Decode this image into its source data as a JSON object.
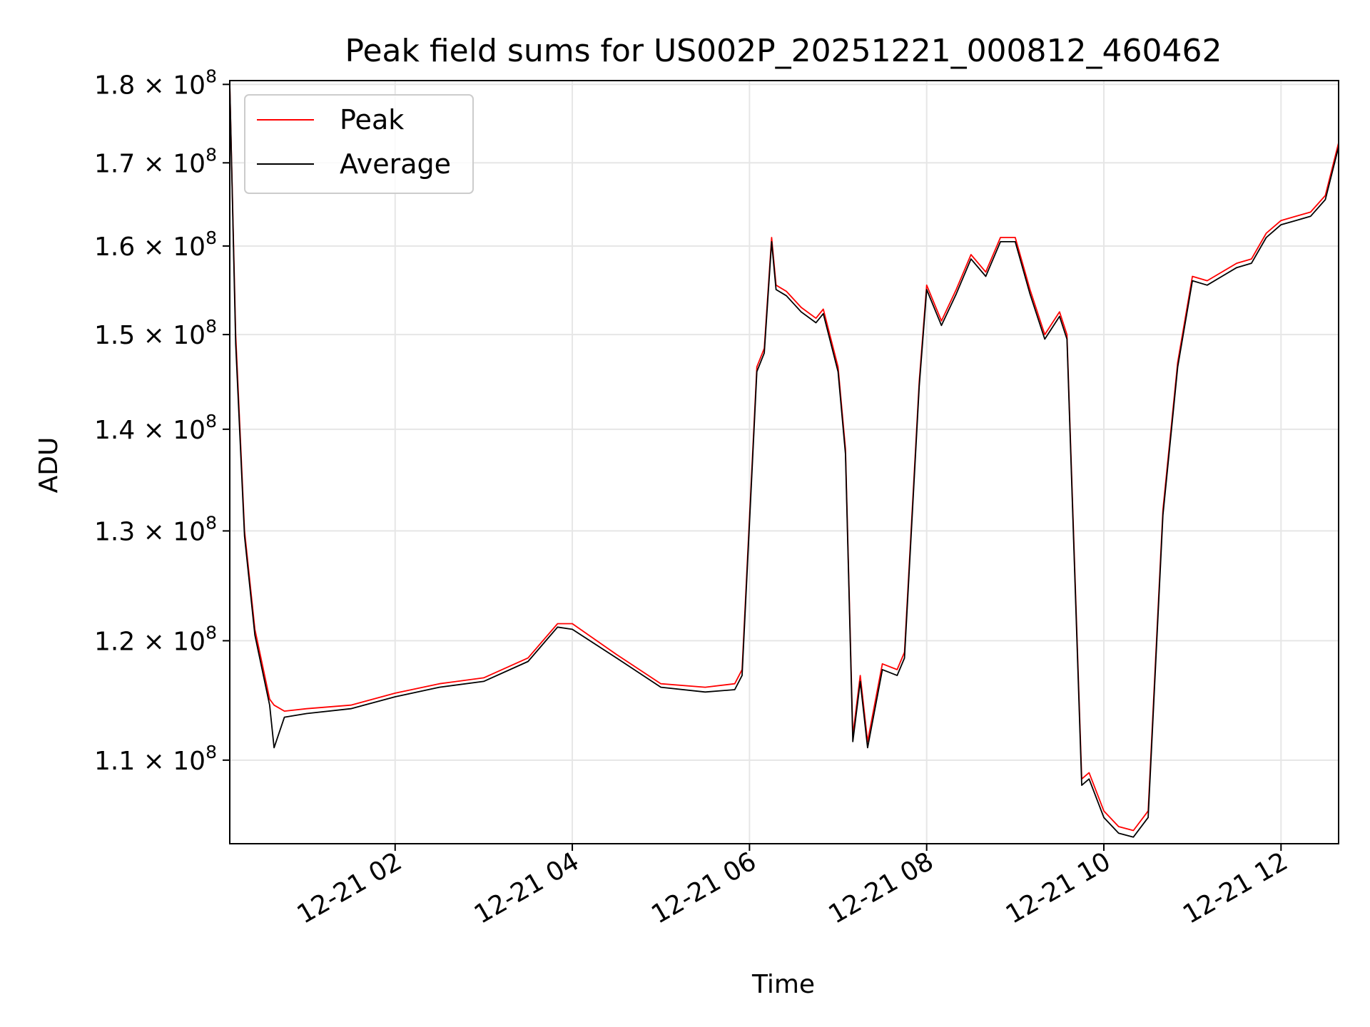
{
  "chart_data": {
    "type": "line",
    "title": "Peak field sums for US002P_20251221_000812_460462",
    "xlabel": "Time",
    "ylabel": "ADU",
    "yscale": "log",
    "ylim": [
      103500000,
      180500000
    ],
    "xlim": [
      "2025-12-21T00:08",
      "2025-12-21T12:39"
    ],
    "grid": true,
    "legend_position": "top-left",
    "x_ticks": [
      "2025-12-21T02:00",
      "2025-12-21T04:00",
      "2025-12-21T06:00",
      "2025-12-21T08:00",
      "2025-12-21T10:00",
      "2025-12-21T12:00"
    ],
    "x_tick_labels": [
      "12-21 02",
      "12-21 04",
      "12-21 06",
      "12-21 08",
      "12-21 10",
      "12-21 12"
    ],
    "y_ticks": [
      110000000,
      120000000,
      130000000,
      140000000,
      150000000,
      160000000,
      170000000,
      180000000
    ],
    "y_tick_labels": [
      {
        "mantissa": "1.1",
        "exp": "8"
      },
      {
        "mantissa": "1.2",
        "exp": "8"
      },
      {
        "mantissa": "1.3",
        "exp": "8"
      },
      {
        "mantissa": "1.4",
        "exp": "8"
      },
      {
        "mantissa": "1.5",
        "exp": "8"
      },
      {
        "mantissa": "1.6",
        "exp": "8"
      },
      {
        "mantissa": "1.7",
        "exp": "8"
      },
      {
        "mantissa": "1.8",
        "exp": "8"
      }
    ],
    "series": [
      {
        "name": "Peak",
        "color": "#ff0000",
        "x": [
          "2025-12-21T00:08",
          "2025-12-21T00:12",
          "2025-12-21T00:18",
          "2025-12-21T00:25",
          "2025-12-21T00:35",
          "2025-12-21T00:38",
          "2025-12-21T00:45",
          "2025-12-21T01:00",
          "2025-12-21T01:30",
          "2025-12-21T02:00",
          "2025-12-21T02:30",
          "2025-12-21T03:00",
          "2025-12-21T03:30",
          "2025-12-21T03:50",
          "2025-12-21T04:00",
          "2025-12-21T04:30",
          "2025-12-21T05:00",
          "2025-12-21T05:30",
          "2025-12-21T05:50",
          "2025-12-21T05:55",
          "2025-12-21T06:05",
          "2025-12-21T06:10",
          "2025-12-21T06:15",
          "2025-12-21T06:18",
          "2025-12-21T06:25",
          "2025-12-21T06:35",
          "2025-12-21T06:45",
          "2025-12-21T06:50",
          "2025-12-21T07:00",
          "2025-12-21T07:05",
          "2025-12-21T07:10",
          "2025-12-21T07:15",
          "2025-12-21T07:20",
          "2025-12-21T07:30",
          "2025-12-21T07:40",
          "2025-12-21T07:45",
          "2025-12-21T07:55",
          "2025-12-21T08:00",
          "2025-12-21T08:10",
          "2025-12-21T08:20",
          "2025-12-21T08:30",
          "2025-12-21T08:40",
          "2025-12-21T08:50",
          "2025-12-21T09:00",
          "2025-12-21T09:10",
          "2025-12-21T09:20",
          "2025-12-21T09:30",
          "2025-12-21T09:35",
          "2025-12-21T09:45",
          "2025-12-21T09:50",
          "2025-12-21T10:00",
          "2025-12-21T10:10",
          "2025-12-21T10:20",
          "2025-12-21T10:30",
          "2025-12-21T10:40",
          "2025-12-21T10:50",
          "2025-12-21T11:00",
          "2025-12-21T11:10",
          "2025-12-21T11:20",
          "2025-12-21T11:30",
          "2025-12-21T11:40",
          "2025-12-21T11:50",
          "2025-12-21T12:00",
          "2025-12-21T12:10",
          "2025-12-21T12:20",
          "2025-12-21T12:30",
          "2025-12-21T12:39"
        ],
        "values": [
          180000000,
          150000000,
          130000000,
          121000000,
          115000000,
          114500000,
          114000000,
          114200000,
          114500000,
          115500000,
          116300000,
          116800000,
          118500000,
          121500000,
          121500000,
          118800000,
          116300000,
          116000000,
          116300000,
          117500000,
          146500000,
          148500000,
          161000000,
          155500000,
          154800000,
          153000000,
          151800000,
          152800000,
          146500000,
          138000000,
          112000000,
          117000000,
          111500000,
          118000000,
          117500000,
          119000000,
          145000000,
          155500000,
          151500000,
          155000000,
          159000000,
          157000000,
          161000000,
          161000000,
          155000000,
          150000000,
          152500000,
          150000000,
          108500000,
          109000000,
          106000000,
          104800000,
          104500000,
          106000000,
          132000000,
          147000000,
          156500000,
          156000000,
          157000000,
          158000000,
          158500000,
          161500000,
          163000000,
          163500000,
          164000000,
          166000000,
          172500000
        ]
      },
      {
        "name": "Average",
        "color": "#000000",
        "x": [
          "2025-12-21T00:08",
          "2025-12-21T00:12",
          "2025-12-21T00:18",
          "2025-12-21T00:25",
          "2025-12-21T00:35",
          "2025-12-21T00:38",
          "2025-12-21T00:45",
          "2025-12-21T01:00",
          "2025-12-21T01:30",
          "2025-12-21T02:00",
          "2025-12-21T02:30",
          "2025-12-21T03:00",
          "2025-12-21T03:30",
          "2025-12-21T03:50",
          "2025-12-21T04:00",
          "2025-12-21T04:30",
          "2025-12-21T05:00",
          "2025-12-21T05:30",
          "2025-12-21T05:50",
          "2025-12-21T05:55",
          "2025-12-21T06:05",
          "2025-12-21T06:10",
          "2025-12-21T06:15",
          "2025-12-21T06:18",
          "2025-12-21T06:25",
          "2025-12-21T06:35",
          "2025-12-21T06:45",
          "2025-12-21T06:50",
          "2025-12-21T07:00",
          "2025-12-21T07:05",
          "2025-12-21T07:10",
          "2025-12-21T07:15",
          "2025-12-21T07:20",
          "2025-12-21T07:30",
          "2025-12-21T07:40",
          "2025-12-21T07:45",
          "2025-12-21T07:55",
          "2025-12-21T08:00",
          "2025-12-21T08:10",
          "2025-12-21T08:20",
          "2025-12-21T08:30",
          "2025-12-21T08:40",
          "2025-12-21T08:50",
          "2025-12-21T09:00",
          "2025-12-21T09:10",
          "2025-12-21T09:20",
          "2025-12-21T09:30",
          "2025-12-21T09:35",
          "2025-12-21T09:45",
          "2025-12-21T09:50",
          "2025-12-21T10:00",
          "2025-12-21T10:10",
          "2025-12-21T10:20",
          "2025-12-21T10:30",
          "2025-12-21T10:40",
          "2025-12-21T10:50",
          "2025-12-21T11:00",
          "2025-12-21T11:10",
          "2025-12-21T11:20",
          "2025-12-21T11:30",
          "2025-12-21T11:40",
          "2025-12-21T11:50",
          "2025-12-21T12:00",
          "2025-12-21T12:10",
          "2025-12-21T12:20",
          "2025-12-21T12:30",
          "2025-12-21T12:39"
        ],
        "values": [
          180000000,
          149000000,
          129500000,
          120500000,
          114500000,
          111000000,
          113500000,
          113800000,
          114200000,
          115200000,
          116000000,
          116500000,
          118200000,
          121200000,
          121000000,
          118500000,
          116000000,
          115600000,
          115800000,
          117000000,
          146000000,
          148000000,
          160500000,
          155000000,
          154300000,
          152500000,
          151300000,
          152300000,
          146000000,
          137500000,
          111500000,
          116500000,
          111000000,
          117500000,
          117000000,
          118500000,
          144500000,
          155000000,
          151000000,
          154500000,
          158500000,
          156500000,
          160500000,
          160500000,
          154500000,
          149500000,
          152000000,
          149500000,
          108000000,
          108500000,
          105500000,
          104300000,
          104000000,
          105500000,
          131500000,
          146500000,
          156000000,
          155500000,
          156500000,
          157500000,
          158000000,
          161000000,
          162500000,
          163000000,
          163500000,
          165500000,
          172000000
        ]
      }
    ]
  }
}
